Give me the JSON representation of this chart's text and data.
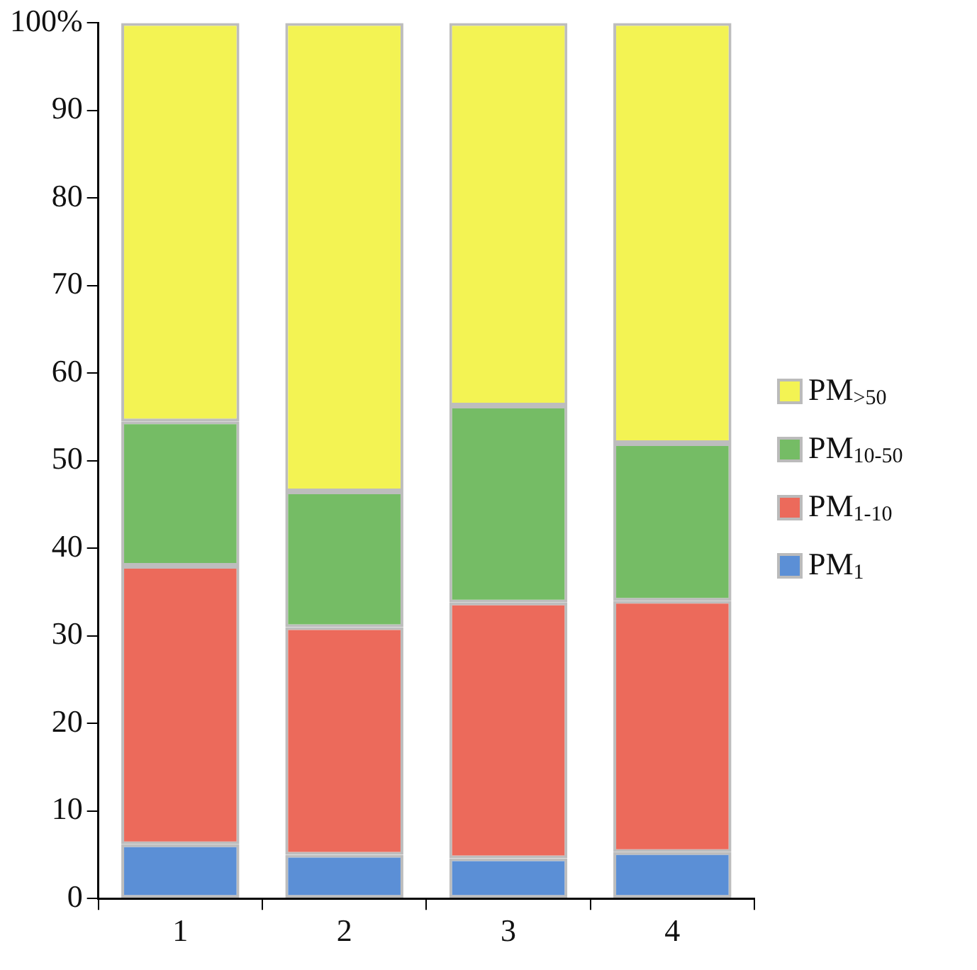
{
  "chart_data": {
    "type": "bar",
    "stacked": true,
    "categories": [
      "1",
      "2",
      "3",
      "4"
    ],
    "series": [
      {
        "name": "PM$_{1}$",
        "color": "#5b8fd6",
        "values": [
          6.2,
          5,
          4.6,
          5.3
        ]
      },
      {
        "name": "PM$_{1-10}$",
        "color": "#ec6a5b",
        "values": [
          31.8,
          26,
          29.2,
          28.7
        ]
      },
      {
        "name": "PM$_{10-50}$",
        "color": "#75bc65",
        "values": [
          16.5,
          15.5,
          22.5,
          18
        ]
      },
      {
        "name": "PM$_{>50}$",
        "color": "#f3f353",
        "values": [
          45.5,
          53.5,
          43.7,
          48
        ]
      }
    ],
    "ylim": [
      0,
      100
    ],
    "yticks": [
      0,
      10,
      20,
      30,
      40,
      50,
      60,
      70,
      80,
      90,
      {
        "value": 100,
        "label": "100%"
      }
    ],
    "grid": false,
    "legend": "right"
  }
}
